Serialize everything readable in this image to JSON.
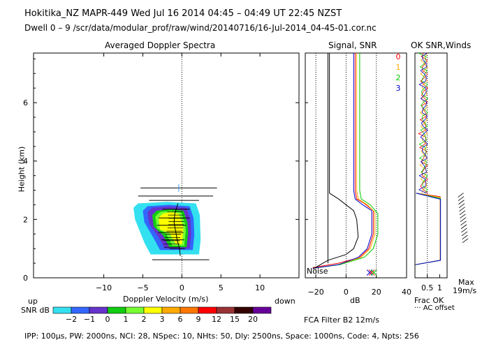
{
  "header": {
    "line1": "Hokitika_NZ  MAPR-449  Wed Jul 16 2014 04:45 – 04:49 UT 22:45 NZST",
    "line2": "Dwell  0 – 9   /scr/data/modular_prof/raw/wind/20140716/16-Jul-2014_04-45-01.cor.nc"
  },
  "panels": {
    "spectra_title": "Averaged Doppler Spectra",
    "signal_title": "Signal, SNR",
    "ok_title": "OK SNR,Winds",
    "dopp_xlabel": "Doppler Velocity (m/s)",
    "up_label": "up",
    "down_label": "down",
    "db_label": "dB",
    "noise_label": "Noise",
    "frac_ok": "Frac OK",
    "ac_offset": "··· AC offset",
    "max_label": "Max",
    "max_value": "19m/s",
    "fca_filter": "FCA Filter B2 12m/s",
    "snr_label": "SNR dB"
  },
  "footer": "IPP: 100µs,  PW: 2000ns,  NCI: 28,  NSpec: 10,  NHts: 50,  Dly: 2500ns,  Space: 1000ns,  Code: 4,  Npts: 256",
  "colorbar": {
    "colors": [
      "#33e0f0",
      "#3366ff",
      "#6633cc",
      "#11cc11",
      "#77ff33",
      "#ffff00",
      "#ffaa00",
      "#ff7700",
      "#ff0000",
      "#993333",
      "#330000",
      "#660099"
    ],
    "labels": [
      "−2",
      "−1",
      "0",
      "1",
      "2",
      "3",
      "6",
      "9",
      "12",
      "15",
      "20"
    ]
  },
  "series_legend": [
    {
      "name": "0",
      "color": "#ff0000"
    },
    {
      "name": "1",
      "color": "#ffaa00"
    },
    {
      "name": "2",
      "color": "#00cc00"
    },
    {
      "name": "3",
      "color": "#0000cc"
    }
  ],
  "chart_data": [
    {
      "type": "heatmap",
      "title": "Averaged Doppler Spectra",
      "xlabel": "Doppler Velocity (m/s)",
      "ylabel": "Height (km)",
      "xlim": [
        -19,
        15
      ],
      "ylim": [
        0,
        7.7
      ],
      "xticks": [
        "−10",
        "−5",
        "0",
        "5",
        "10"
      ],
      "xtick_values": [
        -10,
        -5,
        0,
        5,
        10
      ],
      "yticks": [
        "0",
        "2",
        "4",
        "6"
      ],
      "ytick_values": [
        0,
        2,
        4,
        6
      ],
      "snr_levels": [
        -2,
        -1,
        0,
        1,
        2,
        3,
        6,
        9,
        12,
        15,
        20
      ],
      "echo_region": {
        "height_range_km": [
          0.8,
          2.5
        ],
        "velocity_range_ms": [
          -6,
          1.5
        ],
        "peak_snr_db": 2
      },
      "moment_bars": [
        {
          "h": 3.08,
          "x1": -5.3,
          "x2": 4.5
        },
        {
          "h": 2.8,
          "x1": -5.6,
          "x2": 4.0
        },
        {
          "h": 2.65,
          "x1": -4.2,
          "x2": 2.2
        },
        {
          "h": 2.35,
          "x1": -2.5,
          "x2": 1.0
        },
        {
          "h": 2.05,
          "x1": -3.0,
          "x2": 1.0
        },
        {
          "h": 1.8,
          "x1": -3.2,
          "x2": 0.5
        },
        {
          "h": 1.55,
          "x1": -3.0,
          "x2": 0.2
        },
        {
          "h": 1.3,
          "x1": -2.6,
          "x2": 0.3
        },
        {
          "h": 1.0,
          "x1": -1.6,
          "x2": 0.4
        },
        {
          "h": 0.62,
          "x1": -3.8,
          "x2": 3.5
        }
      ],
      "mean_velocity_profile": [
        {
          "h": 2.55,
          "v": -0.5
        },
        {
          "h": 2.2,
          "v": -0.9
        },
        {
          "h": 1.9,
          "v": -1.0
        },
        {
          "h": 1.6,
          "v": -0.8
        },
        {
          "h": 1.3,
          "v": -0.6
        },
        {
          "h": 1.0,
          "v": -0.3
        },
        {
          "h": 0.75,
          "v": -0.2
        }
      ]
    },
    {
      "type": "line",
      "title": "Signal, SNR",
      "xlabel": "dB",
      "xlim": [
        -27,
        40
      ],
      "ylim": [
        0,
        7.7
      ],
      "xticks": [
        "−20",
        "0",
        "20",
        "40"
      ],
      "xtick_values": [
        -20,
        0,
        20,
        40
      ],
      "series": [
        {
          "name": "0",
          "color": "#ff0000",
          "points": [
            [
              6,
              7.7
            ],
            [
              6,
              3.0
            ],
            [
              7,
              2.7
            ],
            [
              12,
              2.55
            ],
            [
              18,
              2.3
            ],
            [
              18,
              1.5
            ],
            [
              15,
              1.0
            ],
            [
              9,
              0.7
            ],
            [
              -5,
              0.5
            ],
            [
              -22,
              0.35
            ]
          ]
        },
        {
          "name": "1",
          "color": "#ffaa00",
          "points": [
            [
              7,
              7.7
            ],
            [
              7,
              3.0
            ],
            [
              8,
              2.7
            ],
            [
              14,
              2.5
            ],
            [
              19,
              2.25
            ],
            [
              19,
              1.5
            ],
            [
              16,
              1.0
            ],
            [
              10,
              0.7
            ],
            [
              -5,
              0.45
            ],
            [
              -21,
              0.33
            ]
          ]
        },
        {
          "name": "2",
          "color": "#00cc00",
          "points": [
            [
              9,
              7.7
            ],
            [
              9,
              3.0
            ],
            [
              10,
              2.7
            ],
            [
              16,
              2.5
            ],
            [
              21,
              2.2
            ],
            [
              21,
              1.5
            ],
            [
              18,
              1.0
            ],
            [
              12,
              0.7
            ],
            [
              -4,
              0.45
            ],
            [
              -22,
              0.33
            ]
          ]
        },
        {
          "name": "3",
          "color": "#0000cc",
          "points": [
            [
              5,
              7.7
            ],
            [
              5,
              3.0
            ],
            [
              6,
              2.7
            ],
            [
              11,
              2.5
            ],
            [
              17,
              2.3
            ],
            [
              17,
              1.5
            ],
            [
              14,
              1.0
            ],
            [
              8,
              0.7
            ],
            [
              -5,
              0.45
            ],
            [
              -22,
              0.33
            ]
          ]
        },
        {
          "name": "signal",
          "color": "#000000",
          "points": [
            [
              -11,
              7.7
            ],
            [
              -11,
              2.9
            ],
            [
              -5,
              2.7
            ],
            [
              5,
              2.3
            ],
            [
              7,
              2.0
            ],
            [
              8,
              1.4
            ],
            [
              5,
              1.0
            ],
            [
              0,
              0.8
            ],
            [
              -12,
              0.6
            ],
            [
              -22,
              0.3
            ]
          ]
        },
        {
          "name": "noise",
          "color": "#000000",
          "points": [
            [
              -12,
              7.7
            ],
            [
              -12,
              0.5
            ]
          ]
        }
      ],
      "noise_marker_db": 17
    },
    {
      "type": "line",
      "title": "OK SNR,Winds",
      "xlabel": "Frac OK",
      "xlim": [
        0,
        1.3
      ],
      "ylim": [
        0,
        7.7
      ],
      "xticks": [
        "0.5",
        "1"
      ],
      "xtick_values": [
        0.5,
        1
      ],
      "frac_ok_series": [
        {
          "name": "0",
          "color": "#ff0000"
        },
        {
          "name": "1",
          "color": "#ffaa00"
        },
        {
          "name": "2",
          "color": "#00cc00"
        },
        {
          "name": "3",
          "color": "#0000cc"
        }
      ],
      "frac_ok_profile": [
        [
          0.0,
          0.55
        ],
        [
          1.0,
          0.6
        ],
        [
          1.0,
          2.8
        ],
        [
          0.05,
          2.9
        ]
      ],
      "max_wind": "19m/s"
    }
  ]
}
